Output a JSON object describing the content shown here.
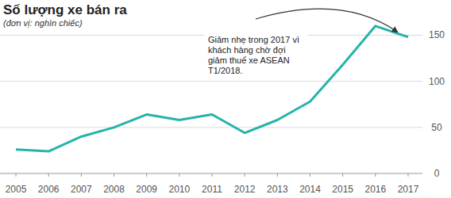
{
  "chart_data": {
    "type": "line",
    "title": "Số lượng xe bán ra",
    "subtitle": "(đơn vị: nghìn chiếc)",
    "annotation": "Giảm nhẹ trong 2017 vì khách hàng chờ đợi giảm thuế xe ASEAN T1/2018.",
    "categories": [
      "2005",
      "2006",
      "2007",
      "2008",
      "2009",
      "2010",
      "2011",
      "2012",
      "2013",
      "2014",
      "2015",
      "2016",
      "2017"
    ],
    "values": [
      26,
      24,
      40,
      50,
      64,
      58,
      64,
      44,
      58,
      78,
      118,
      160,
      148
    ],
    "color": "#26b3ab",
    "ylim": [
      0,
      165
    ],
    "yticks": [
      0,
      50,
      100,
      150
    ],
    "grid": true
  }
}
